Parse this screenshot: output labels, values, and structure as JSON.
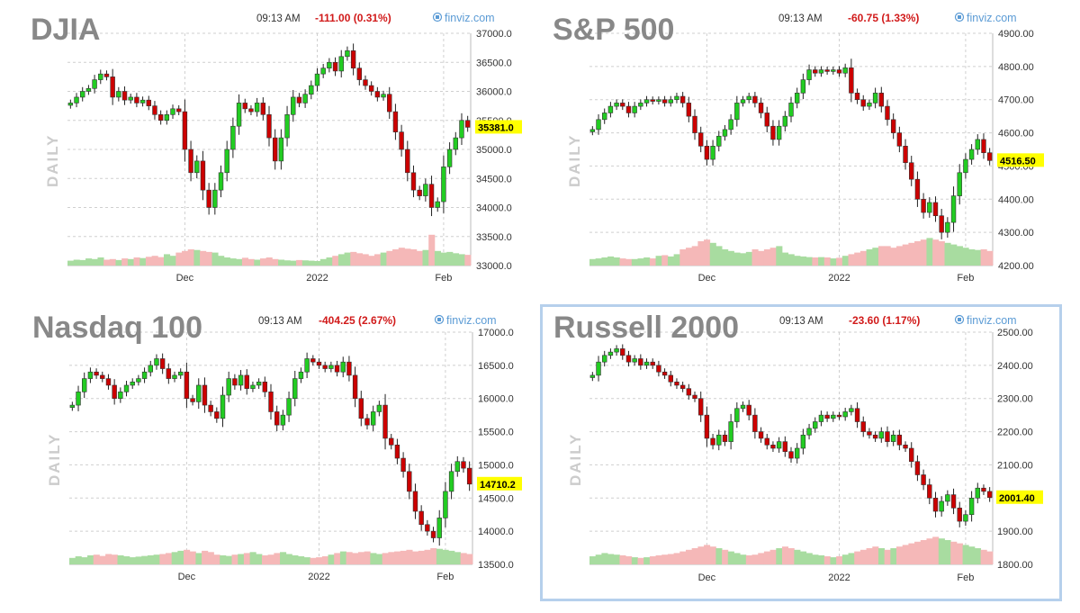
{
  "chart_data": [
    {
      "type": "candlestick",
      "title": "DJIA",
      "subtitle": "DAILY",
      "time": "09:13 AM",
      "change": "-111.00 (0.31%)",
      "brand": "finviz.com",
      "last_value": "35381.0",
      "last_numeric": 35381,
      "selected": false,
      "ylim": [
        33000,
        37000
      ],
      "y_ticks": [
        "37000.0",
        "36500.0",
        "36000.0",
        "35500.0",
        "35000.0",
        "34500.0",
        "34000.0",
        "33500.0",
        "33000.0"
      ],
      "y_tick_values": [
        37000,
        36500,
        36000,
        35500,
        35000,
        34500,
        34000,
        33500,
        33000
      ],
      "x_ticks": [
        "Dec",
        "2022",
        "Feb"
      ],
      "x_tick_index": [
        19,
        41,
        62
      ],
      "closes": [
        35800,
        35900,
        36000,
        36050,
        36200,
        36300,
        36250,
        35900,
        36000,
        35850,
        35900,
        35800,
        35850,
        35750,
        35600,
        35500,
        35600,
        35700,
        35650,
        35000,
        34600,
        34800,
        34300,
        34000,
        34300,
        34600,
        35000,
        35400,
        35800,
        35700,
        35650,
        35800,
        35600,
        35200,
        34800,
        35200,
        35600,
        35900,
        35800,
        35950,
        36100,
        36300,
        36400,
        36500,
        36350,
        36600,
        36700,
        36400,
        36200,
        36100,
        36000,
        35900,
        35950,
        35650,
        35300,
        35000,
        34600,
        34300,
        34200,
        34400,
        34000,
        34100,
        34700,
        35000,
        35200,
        35500,
        35381
      ],
      "volumes": [
        0.15,
        0.18,
        0.17,
        0.22,
        0.2,
        0.25,
        0.18,
        0.2,
        0.17,
        0.22,
        0.2,
        0.25,
        0.23,
        0.27,
        0.3,
        0.26,
        0.35,
        0.3,
        0.4,
        0.45,
        0.5,
        0.48,
        0.45,
        0.42,
        0.4,
        0.3,
        0.25,
        0.22,
        0.2,
        0.24,
        0.2,
        0.18,
        0.22,
        0.25,
        0.2,
        0.18,
        0.16,
        0.15,
        0.17,
        0.16,
        0.15,
        0.14,
        0.2,
        0.25,
        0.3,
        0.35,
        0.4,
        0.42,
        0.38,
        0.35,
        0.3,
        0.35,
        0.4,
        0.45,
        0.5,
        0.55,
        0.52,
        0.5,
        0.45,
        0.48,
        0.95,
        0.45,
        0.4,
        0.42,
        0.38,
        0.35,
        0.33
      ]
    },
    {
      "type": "candlestick",
      "title": "S&P 500",
      "subtitle": "DAILY",
      "time": "09:13 AM",
      "change": "-60.75 (1.33%)",
      "brand": "finviz.com",
      "last_value": "4516.50",
      "last_numeric": 4516.5,
      "selected": false,
      "ylim": [
        4200,
        4900
      ],
      "y_ticks": [
        "4900.00",
        "4800.00",
        "4700.00",
        "4600.00",
        "4500.00",
        "4400.00",
        "4300.00",
        "4200.00"
      ],
      "y_tick_values": [
        4900,
        4800,
        4700,
        4600,
        4500,
        4400,
        4300,
        4200
      ],
      "x_ticks": [
        "Dec",
        "2022",
        "Feb"
      ],
      "x_tick_index": [
        19,
        41,
        62
      ],
      "closes": [
        4610,
        4640,
        4660,
        4680,
        4690,
        4680,
        4660,
        4680,
        4690,
        4700,
        4695,
        4700,
        4690,
        4700,
        4710,
        4690,
        4650,
        4600,
        4560,
        4520,
        4560,
        4590,
        4610,
        4640,
        4690,
        4700,
        4710,
        4690,
        4660,
        4620,
        4580,
        4620,
        4650,
        4690,
        4720,
        4760,
        4790,
        4780,
        4790,
        4785,
        4790,
        4780,
        4796,
        4720,
        4700,
        4680,
        4690,
        4720,
        4680,
        4640,
        4600,
        4560,
        4510,
        4460,
        4400,
        4360,
        4390,
        4350,
        4300,
        4330,
        4410,
        4480,
        4520,
        4550,
        4580,
        4540,
        4516.5
      ],
      "volumes": [
        0.2,
        0.22,
        0.25,
        0.28,
        0.25,
        0.22,
        0.2,
        0.2,
        0.22,
        0.25,
        0.22,
        0.3,
        0.32,
        0.28,
        0.35,
        0.5,
        0.55,
        0.6,
        0.75,
        0.8,
        0.7,
        0.6,
        0.5,
        0.45,
        0.4,
        0.38,
        0.42,
        0.5,
        0.45,
        0.5,
        0.55,
        0.6,
        0.4,
        0.35,
        0.3,
        0.28,
        0.26,
        0.25,
        0.26,
        0.25,
        0.22,
        0.24,
        0.3,
        0.35,
        0.4,
        0.45,
        0.5,
        0.55,
        0.6,
        0.6,
        0.55,
        0.6,
        0.65,
        0.7,
        0.75,
        0.8,
        0.85,
        0.8,
        0.75,
        0.7,
        0.65,
        0.6,
        0.55,
        0.5,
        0.48,
        0.5,
        0.45
      ]
    },
    {
      "type": "candlestick",
      "title": "Nasdaq 100",
      "subtitle": "DAILY",
      "time": "09:13 AM",
      "change": "-404.25 (2.67%)",
      "brand": "finviz.com",
      "last_value": "14710.2",
      "last_numeric": 14710,
      "selected": false,
      "ylim": [
        13500,
        17000
      ],
      "y_ticks": [
        "17000.0",
        "16500.0",
        "16000.0",
        "15500.0",
        "15000.0",
        "14500.0",
        "14000.0",
        "13500.0"
      ],
      "y_tick_values": [
        17000,
        16500,
        16000,
        15500,
        15000,
        14500,
        14000,
        13500
      ],
      "x_ticks": [
        "Dec",
        "2022",
        "Feb"
      ],
      "x_tick_index": [
        19,
        41,
        62
      ],
      "closes": [
        15900,
        16100,
        16300,
        16400,
        16350,
        16300,
        16200,
        16000,
        16100,
        16200,
        16250,
        16300,
        16400,
        16500,
        16600,
        16450,
        16300,
        16350,
        16400,
        16000,
        15950,
        16200,
        15900,
        15800,
        15700,
        16050,
        16300,
        16200,
        16350,
        16150,
        16200,
        16250,
        16100,
        15800,
        15600,
        15750,
        16000,
        16300,
        16400,
        16600,
        16550,
        16500,
        16450,
        16500,
        16400,
        16550,
        16350,
        16000,
        15700,
        15600,
        15800,
        15900,
        15400,
        15300,
        15100,
        14900,
        14600,
        14300,
        14100,
        14000,
        13900,
        14200,
        14600,
        14900,
        15050,
        14950,
        14710
      ],
      "volumes": [
        0.2,
        0.25,
        0.22,
        0.28,
        0.3,
        0.26,
        0.32,
        0.3,
        0.28,
        0.25,
        0.22,
        0.24,
        0.26,
        0.28,
        0.3,
        0.32,
        0.35,
        0.38,
        0.42,
        0.45,
        0.4,
        0.35,
        0.42,
        0.38,
        0.3,
        0.28,
        0.26,
        0.3,
        0.32,
        0.35,
        0.38,
        0.32,
        0.28,
        0.3,
        0.35,
        0.38,
        0.32,
        0.28,
        0.25,
        0.22,
        0.2,
        0.22,
        0.25,
        0.3,
        0.35,
        0.4,
        0.38,
        0.35,
        0.38,
        0.4,
        0.35,
        0.32,
        0.35,
        0.38,
        0.4,
        0.42,
        0.45,
        0.4,
        0.42,
        0.45,
        0.5,
        0.48,
        0.45,
        0.42,
        0.38,
        0.35,
        0.32
      ]
    },
    {
      "type": "candlestick",
      "title": "Russell 2000",
      "subtitle": "DAILY",
      "time": "09:13 AM",
      "change": "-23.60 (1.17%)",
      "brand": "finviz.com",
      "last_value": "2001.40",
      "last_numeric": 2001.4,
      "selected": true,
      "ylim": [
        1800,
        2500
      ],
      "y_ticks": [
        "2500.00",
        "2400.00",
        "2300.00",
        "2200.00",
        "2100.00",
        "2000.00",
        "1900.00",
        "1800.00"
      ],
      "y_tick_values": [
        2500,
        2400,
        2300,
        2200,
        2100,
        2000,
        1900,
        1800
      ],
      "x_ticks": [
        "Dec",
        "2022",
        "Feb"
      ],
      "x_tick_index": [
        19,
        41,
        62
      ],
      "closes": [
        2370,
        2410,
        2430,
        2440,
        2450,
        2430,
        2410,
        2420,
        2400,
        2410,
        2400,
        2380,
        2370,
        2350,
        2340,
        2330,
        2310,
        2300,
        2250,
        2180,
        2160,
        2190,
        2170,
        2230,
        2270,
        2280,
        2250,
        2200,
        2180,
        2160,
        2150,
        2170,
        2140,
        2120,
        2150,
        2190,
        2210,
        2230,
        2250,
        2240,
        2250,
        2245,
        2260,
        2270,
        2230,
        2200,
        2190,
        2180,
        2200,
        2170,
        2190,
        2160,
        2150,
        2110,
        2070,
        2040,
        2000,
        1960,
        1990,
        2010,
        1970,
        1930,
        1950,
        2000,
        2030,
        2020,
        2001.4
      ],
      "volumes": [
        0.25,
        0.3,
        0.35,
        0.32,
        0.3,
        0.28,
        0.25,
        0.22,
        0.2,
        0.22,
        0.25,
        0.28,
        0.3,
        0.32,
        0.35,
        0.4,
        0.45,
        0.5,
        0.55,
        0.6,
        0.55,
        0.5,
        0.45,
        0.4,
        0.35,
        0.3,
        0.28,
        0.3,
        0.35,
        0.4,
        0.45,
        0.5,
        0.55,
        0.5,
        0.45,
        0.4,
        0.35,
        0.3,
        0.28,
        0.25,
        0.22,
        0.25,
        0.3,
        0.35,
        0.4,
        0.45,
        0.5,
        0.55,
        0.5,
        0.45,
        0.5,
        0.55,
        0.6,
        0.65,
        0.7,
        0.75,
        0.8,
        0.85,
        0.8,
        0.75,
        0.7,
        0.65,
        0.6,
        0.55,
        0.5,
        0.45,
        0.4
      ]
    }
  ]
}
